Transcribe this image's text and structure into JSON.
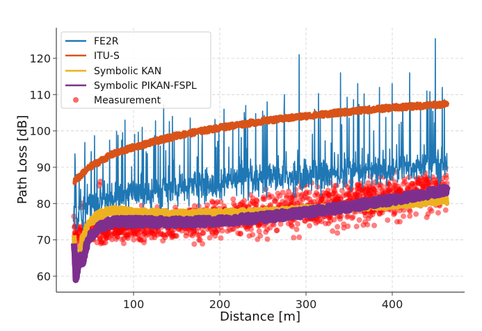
{
  "chart_data": {
    "type": "line",
    "title": "",
    "xlabel": "Distance [m]",
    "ylabel": "Path Loss [dB]",
    "xlim": [
      -5,
      482
    ],
    "ylim": [
      55.8,
      128.4
    ],
    "xticks": [
      100,
      200,
      300,
      400
    ],
    "xtick_labels": [
      "100",
      "200",
      "300",
      "400"
    ],
    "yticks": [
      60,
      70,
      80,
      90,
      100,
      110,
      120
    ],
    "ytick_labels": [
      "60",
      "70",
      "80",
      "90",
      "100",
      "110",
      "120"
    ],
    "grid": true,
    "grid_style": "dashed",
    "legend_position": "top-left",
    "x_range_data": [
      30.6,
      463.7
    ],
    "series": [
      {
        "name": "FE2R",
        "kind": "line",
        "color": "#1f77b4",
        "x": [
          31,
          33,
          35,
          38,
          40,
          45,
          50,
          55,
          60,
          65,
          70,
          80,
          90,
          100,
          110,
          120,
          130,
          140,
          150,
          160,
          170,
          180,
          190,
          200,
          210,
          220,
          230,
          240,
          250,
          260,
          270,
          280,
          292,
          300,
          310,
          320,
          330,
          340,
          350,
          360,
          370,
          380,
          390,
          400,
          410,
          420,
          430,
          440,
          450,
          455,
          460,
          463
        ],
        "baseline": [
          76,
          80,
          72,
          78,
          77,
          79,
          80,
          80,
          81,
          81,
          81,
          82,
          82,
          83,
          83,
          83,
          83,
          84,
          84,
          84,
          85,
          85,
          85,
          85,
          86,
          86,
          86,
          86,
          86,
          87,
          87,
          87,
          87,
          88,
          88,
          88,
          88,
          88,
          89,
          89,
          89,
          89,
          89,
          89,
          90,
          90,
          90,
          91,
          91,
          91,
          91,
          91
        ],
        "peaks": [
          {
            "x": 33,
            "y": 88
          },
          {
            "x": 90,
            "y": 103
          },
          {
            "x": 110,
            "y": 101
          },
          {
            "x": 145,
            "y": 104
          },
          {
            "x": 175,
            "y": 99
          },
          {
            "x": 205,
            "y": 106
          },
          {
            "x": 230,
            "y": 107
          },
          {
            "x": 255,
            "y": 108
          },
          {
            "x": 275,
            "y": 110
          },
          {
            "x": 292,
            "y": 121
          },
          {
            "x": 310,
            "y": 106
          },
          {
            "x": 340,
            "y": 116
          },
          {
            "x": 360,
            "y": 113
          },
          {
            "x": 385,
            "y": 112
          },
          {
            "x": 400,
            "y": 113
          },
          {
            "x": 420,
            "y": 116
          },
          {
            "x": 440,
            "y": 111
          },
          {
            "x": 450,
            "y": 125.4
          },
          {
            "x": 458,
            "y": 112
          }
        ]
      },
      {
        "name": "ITU-S",
        "kind": "line",
        "color": "#d95319",
        "x": [
          31,
          50,
          75,
          100,
          150,
          200,
          250,
          300,
          350,
          400,
          464
        ],
        "y": [
          86.0,
          90.2,
          93.5,
          95.5,
          98.7,
          100.9,
          102.7,
          104.1,
          105.3,
          106.4,
          107.4
        ]
      },
      {
        "name": "Symbolic KAN",
        "kind": "line",
        "color": "#edb120",
        "x": [
          31,
          33,
          35,
          38,
          40,
          45,
          50,
          60,
          70,
          80,
          100,
          150,
          200,
          250,
          300,
          350,
          400,
          450,
          464
        ],
        "y": [
          72,
          64,
          62,
          66,
          70,
          73,
          75,
          77,
          78,
          78,
          77.5,
          77,
          77.2,
          77.6,
          78.2,
          79,
          79.8,
          80.8,
          81
        ]
      },
      {
        "name": "Symbolic PIKAN-FSPL",
        "kind": "line",
        "color": "#7e2f8e",
        "x": [
          31,
          33,
          35,
          38,
          40,
          42,
          45,
          50,
          60,
          70,
          80,
          100,
          150,
          200,
          250,
          300,
          350,
          400,
          450,
          464
        ],
        "y": [
          70,
          59.2,
          62,
          66,
          63.5,
          65,
          68,
          71,
          73.5,
          74.5,
          75,
          75,
          74.8,
          75.2,
          76.2,
          77.5,
          79.2,
          81,
          83.2,
          83.9
        ]
      },
      {
        "name": "Measurement",
        "kind": "scatter",
        "color": "#ff0000",
        "n_points": 1400,
        "center": {
          "x": [
            31,
            50,
            100,
            150,
            200,
            250,
            300,
            350,
            400,
            464
          ],
          "y": [
            72,
            72,
            73,
            74,
            75,
            77,
            79,
            80,
            82,
            84
          ]
        },
        "spread_db": [
          3,
          3,
          3.5,
          4,
          4.5,
          5,
          5,
          5,
          5,
          5
        ],
        "range_y": [
          68,
          92
        ],
        "highlighted_outliers": [
          {
            "x": 39,
            "y": 79
          },
          {
            "x": 40,
            "y": 80
          },
          {
            "x": 60,
            "y": 85
          },
          {
            "x": 62,
            "y": 86
          }
        ]
      }
    ]
  },
  "legend": {
    "items": [
      {
        "label": "FE2R",
        "color": "#1f77b4",
        "kind": "line"
      },
      {
        "label": "ITU-S",
        "color": "#d95319",
        "kind": "line"
      },
      {
        "label": "Symbolic KAN",
        "color": "#edb120",
        "kind": "line"
      },
      {
        "label": "Symbolic PIKAN-FSPL",
        "color": "#7e2f8e",
        "kind": "line"
      },
      {
        "label": "Measurement",
        "color": "#ff0000",
        "kind": "marker"
      }
    ]
  }
}
